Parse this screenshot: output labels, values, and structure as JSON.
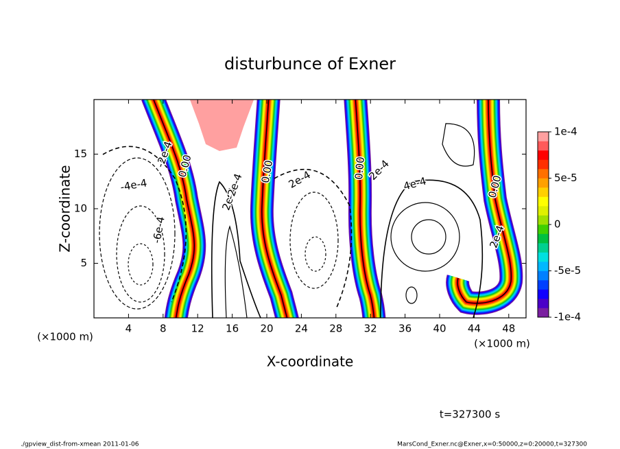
{
  "chart_data": {
    "type": "contour",
    "title": "disturbunce of Exner",
    "x_label": "X-coordinate",
    "y_label": "Z-coordinate",
    "x_unit_label": "(×1000 m)",
    "xlim": [
      0,
      50
    ],
    "xticks": [
      4,
      8,
      12,
      16,
      20,
      24,
      28,
      32,
      36,
      40,
      44,
      48
    ],
    "ylim": [
      0,
      20
    ],
    "yticks": [
      5,
      10,
      15
    ],
    "contour_labels": [
      "0.00",
      "0.00",
      "0.00",
      "0.00",
      "2e-4",
      "2e-4",
      "2e-4",
      "2e-4",
      "-2e-4",
      "-2e-4",
      "-4e-4",
      "-6e-4",
      "4e-4"
    ],
    "colorbar": {
      "lim": [
        -0.0001,
        0.0001
      ],
      "ticks": [
        {
          "value": 0.0001,
          "label": "1e-4"
        },
        {
          "value": 5e-05,
          "label": "5e-5"
        },
        0,
        {
          "value": -5e-05,
          "label": "-5e-5"
        },
        {
          "value": -0.0001,
          "label": "-1e-4"
        }
      ],
      "colors": [
        "#7a1fa0",
        "#4b00c8",
        "#1000ff",
        "#0040ff",
        "#0080ff",
        "#00b8ff",
        "#00e0e0",
        "#00d090",
        "#00c040",
        "#40d000",
        "#a0e000",
        "#e0f000",
        "#ffff00",
        "#ffd000",
        "#ffa000",
        "#ff7000",
        "#ff3000",
        "#ff0000",
        "#ff5a5a",
        "#ffa0a0"
      ]
    },
    "time_label": "t=327300 s",
    "footer_left": "./gpview_dist-from-xmean  2011-01-06",
    "footer_right": "MarsCond_Exner.nc@Exner,x=0:50000,z=0:20000,t=327300"
  }
}
